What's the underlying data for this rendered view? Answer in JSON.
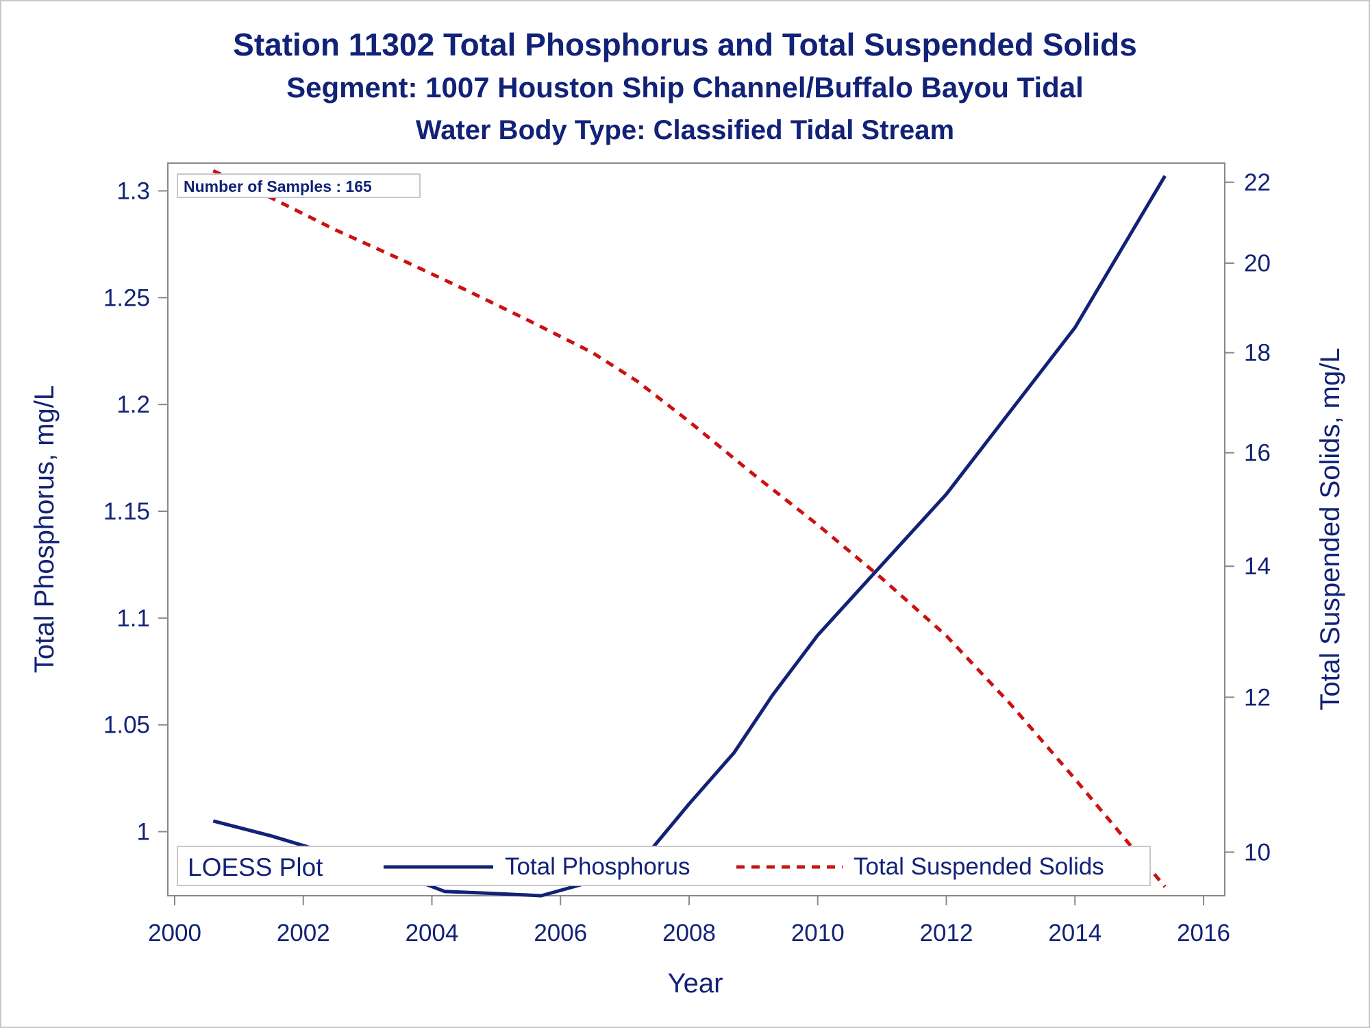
{
  "titles": {
    "line1": "Station 11302  Total Phosphorus and Total Suspended Solids",
    "line2": "Segment: 1007  Houston Ship Channel/Buffalo Bayou Tidal",
    "line3": "Water Body Type: Classified Tidal Stream"
  },
  "inset_label": "Number of Samples : 165",
  "colors": {
    "text": "#112277",
    "phosphorus_line": "#112277",
    "tss_line": "#cc1111",
    "axis": "#888888",
    "frame": "#c8c8c8"
  },
  "chart_data": {
    "type": "line",
    "xlabel": "Year",
    "ylabel_left": "Total Phosphorus, mg/L",
    "ylabel_right": "Total Suspended Solids, mg/L",
    "xlim": [
      2000,
      2016
    ],
    "ylim_left": [
      0.97,
      1.313
    ],
    "ylim_right": [
      9.5,
      22.5
    ],
    "y_right_scale": "log",
    "x_ticks": [
      2000,
      2002,
      2004,
      2006,
      2008,
      2010,
      2012,
      2014,
      2016
    ],
    "y_left_ticks": [
      1,
      1.05,
      1.1,
      1.15,
      1.2,
      1.25,
      1.3
    ],
    "y_right_ticks": [
      10,
      12,
      14,
      16,
      18,
      20,
      22
    ],
    "legend": {
      "title": "LOESS Plot",
      "placement": "bottom-inside",
      "entries": [
        "Total Phosphorus",
        "Total Suspended Solids"
      ]
    },
    "series": [
      {
        "name": "Total Phosphorus",
        "axis": "left",
        "style": "solid",
        "x": [
          2000.6,
          2001.5,
          2002.5,
          2003.5,
          2004.2,
          2005.0,
          2005.7,
          2006.3,
          2007.2,
          2008.0,
          2008.7,
          2009.3,
          2010.0,
          2011.0,
          2012.0,
          2013.0,
          2014.0,
          2015.4
        ],
        "y": [
          1.005,
          0.998,
          0.989,
          0.98,
          0.972,
          0.971,
          0.97,
          0.975,
          0.984,
          1.013,
          1.037,
          1.064,
          1.092,
          1.125,
          1.158,
          1.197,
          1.236,
          1.307
        ]
      },
      {
        "name": "Total Suspended Solids",
        "axis": "right",
        "style": "dashed",
        "x": [
          2000.6,
          2001.5,
          2002.5,
          2003.5,
          2004.5,
          2005.5,
          2006.5,
          2007.2,
          2008.0,
          2009.0,
          2010.0,
          2011.0,
          2012.0,
          2013.0,
          2014.0,
          2015.4
        ],
        "y": [
          22.3,
          21.6,
          20.8,
          20.1,
          19.4,
          18.7,
          18.0,
          17.4,
          16.6,
          15.6,
          14.7,
          13.8,
          12.9,
          11.9,
          10.9,
          9.6
        ]
      }
    ]
  }
}
